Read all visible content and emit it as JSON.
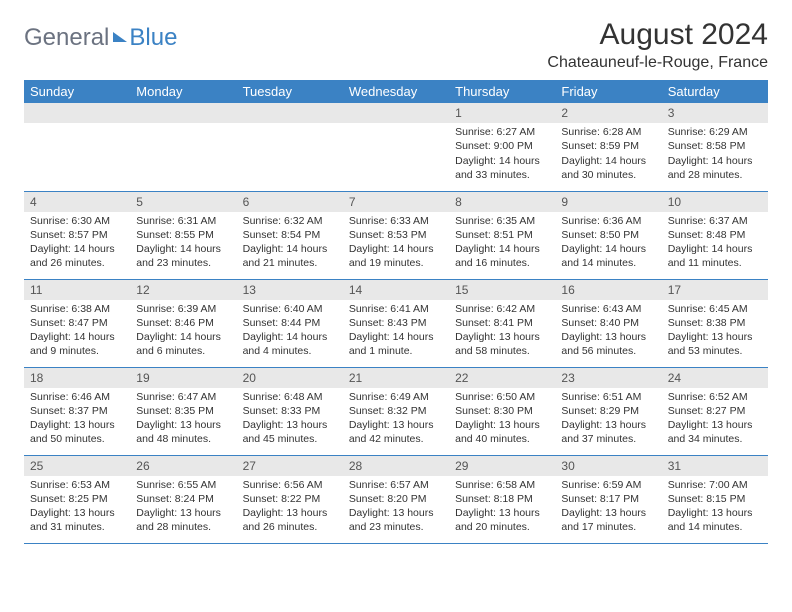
{
  "logo": {
    "part1": "General",
    "part2": "Blue"
  },
  "title": "August 2024",
  "location": "Chateauneuf-le-Rouge, France",
  "colors": {
    "header_bg": "#3b82c4",
    "header_text": "#ffffff",
    "daynum_bg": "#e8e8e8",
    "cell_border": "#3b82c4",
    "text": "#333333",
    "logo_gray": "#6b7280",
    "logo_blue": "#3b82c4"
  },
  "fonts": {
    "title_size_pt": 22,
    "location_size_pt": 12,
    "header_size_pt": 10,
    "cell_size_pt": 8
  },
  "weekdays": [
    "Sunday",
    "Monday",
    "Tuesday",
    "Wednesday",
    "Thursday",
    "Friday",
    "Saturday"
  ],
  "weeks": [
    [
      null,
      null,
      null,
      null,
      {
        "n": "1",
        "sr": "6:27 AM",
        "ss": "9:00 PM",
        "dl": "14 hours and 33 minutes."
      },
      {
        "n": "2",
        "sr": "6:28 AM",
        "ss": "8:59 PM",
        "dl": "14 hours and 30 minutes."
      },
      {
        "n": "3",
        "sr": "6:29 AM",
        "ss": "8:58 PM",
        "dl": "14 hours and 28 minutes."
      }
    ],
    [
      {
        "n": "4",
        "sr": "6:30 AM",
        "ss": "8:57 PM",
        "dl": "14 hours and 26 minutes."
      },
      {
        "n": "5",
        "sr": "6:31 AM",
        "ss": "8:55 PM",
        "dl": "14 hours and 23 minutes."
      },
      {
        "n": "6",
        "sr": "6:32 AM",
        "ss": "8:54 PM",
        "dl": "14 hours and 21 minutes."
      },
      {
        "n": "7",
        "sr": "6:33 AM",
        "ss": "8:53 PM",
        "dl": "14 hours and 19 minutes."
      },
      {
        "n": "8",
        "sr": "6:35 AM",
        "ss": "8:51 PM",
        "dl": "14 hours and 16 minutes."
      },
      {
        "n": "9",
        "sr": "6:36 AM",
        "ss": "8:50 PM",
        "dl": "14 hours and 14 minutes."
      },
      {
        "n": "10",
        "sr": "6:37 AM",
        "ss": "8:48 PM",
        "dl": "14 hours and 11 minutes."
      }
    ],
    [
      {
        "n": "11",
        "sr": "6:38 AM",
        "ss": "8:47 PM",
        "dl": "14 hours and 9 minutes."
      },
      {
        "n": "12",
        "sr": "6:39 AM",
        "ss": "8:46 PM",
        "dl": "14 hours and 6 minutes."
      },
      {
        "n": "13",
        "sr": "6:40 AM",
        "ss": "8:44 PM",
        "dl": "14 hours and 4 minutes."
      },
      {
        "n": "14",
        "sr": "6:41 AM",
        "ss": "8:43 PM",
        "dl": "14 hours and 1 minute."
      },
      {
        "n": "15",
        "sr": "6:42 AM",
        "ss": "8:41 PM",
        "dl": "13 hours and 58 minutes."
      },
      {
        "n": "16",
        "sr": "6:43 AM",
        "ss": "8:40 PM",
        "dl": "13 hours and 56 minutes."
      },
      {
        "n": "17",
        "sr": "6:45 AM",
        "ss": "8:38 PM",
        "dl": "13 hours and 53 minutes."
      }
    ],
    [
      {
        "n": "18",
        "sr": "6:46 AM",
        "ss": "8:37 PM",
        "dl": "13 hours and 50 minutes."
      },
      {
        "n": "19",
        "sr": "6:47 AM",
        "ss": "8:35 PM",
        "dl": "13 hours and 48 minutes."
      },
      {
        "n": "20",
        "sr": "6:48 AM",
        "ss": "8:33 PM",
        "dl": "13 hours and 45 minutes."
      },
      {
        "n": "21",
        "sr": "6:49 AM",
        "ss": "8:32 PM",
        "dl": "13 hours and 42 minutes."
      },
      {
        "n": "22",
        "sr": "6:50 AM",
        "ss": "8:30 PM",
        "dl": "13 hours and 40 minutes."
      },
      {
        "n": "23",
        "sr": "6:51 AM",
        "ss": "8:29 PM",
        "dl": "13 hours and 37 minutes."
      },
      {
        "n": "24",
        "sr": "6:52 AM",
        "ss": "8:27 PM",
        "dl": "13 hours and 34 minutes."
      }
    ],
    [
      {
        "n": "25",
        "sr": "6:53 AM",
        "ss": "8:25 PM",
        "dl": "13 hours and 31 minutes."
      },
      {
        "n": "26",
        "sr": "6:55 AM",
        "ss": "8:24 PM",
        "dl": "13 hours and 28 minutes."
      },
      {
        "n": "27",
        "sr": "6:56 AM",
        "ss": "8:22 PM",
        "dl": "13 hours and 26 minutes."
      },
      {
        "n": "28",
        "sr": "6:57 AM",
        "ss": "8:20 PM",
        "dl": "13 hours and 23 minutes."
      },
      {
        "n": "29",
        "sr": "6:58 AM",
        "ss": "8:18 PM",
        "dl": "13 hours and 20 minutes."
      },
      {
        "n": "30",
        "sr": "6:59 AM",
        "ss": "8:17 PM",
        "dl": "13 hours and 17 minutes."
      },
      {
        "n": "31",
        "sr": "7:00 AM",
        "ss": "8:15 PM",
        "dl": "13 hours and 14 minutes."
      }
    ]
  ],
  "labels": {
    "sunrise": "Sunrise:",
    "sunset": "Sunset:",
    "daylight": "Daylight:"
  }
}
